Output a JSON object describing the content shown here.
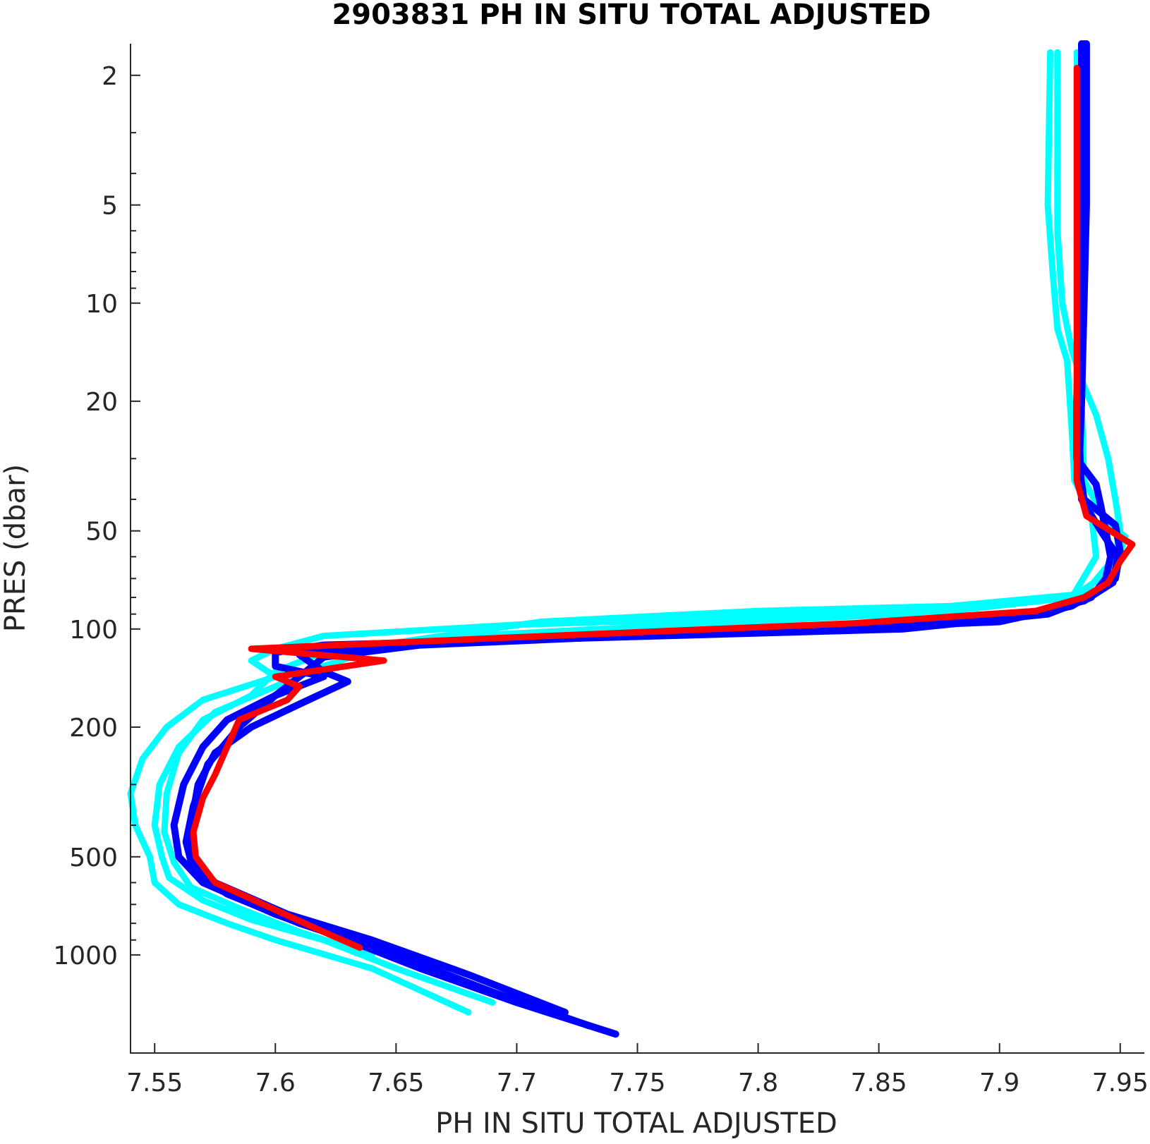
{
  "chart_data": {
    "type": "line",
    "title": "2903831  PH IN SITU TOTAL ADJUSTED",
    "xlabel": "PH IN SITU TOTAL ADJUSTED",
    "ylabel": "PRES (dbar)",
    "xlim": [
      7.54,
      7.96
    ],
    "ylim": [
      1.6,
      2000
    ],
    "y_scale": "log",
    "y_reversed": true,
    "grid": false,
    "x_ticks": [
      "7.55",
      "7.6",
      "7.65",
      "7.7",
      "7.75",
      "7.8",
      "7.85",
      "7.9",
      "7.95"
    ],
    "y_ticks": [
      "2",
      "5",
      "10",
      "20",
      "50",
      "100",
      "200",
      "500",
      "1000"
    ],
    "colors": {
      "cyan": "#00ffff",
      "blue": "#0000ff",
      "red": "#ff0000"
    },
    "series": [
      {
        "color": "cyan",
        "points": [
          [
            7.921,
            1.7
          ],
          [
            7.92,
            5
          ],
          [
            7.922,
            8
          ],
          [
            7.924,
            12
          ],
          [
            7.928,
            15
          ],
          [
            7.93,
            25
          ],
          [
            7.931,
            35
          ],
          [
            7.938,
            44
          ],
          [
            7.94,
            60
          ],
          [
            7.93,
            80
          ],
          [
            7.88,
            88
          ],
          [
            7.8,
            92
          ],
          [
            7.7,
            97
          ],
          [
            7.62,
            105
          ],
          [
            7.6,
            115
          ],
          [
            7.59,
            125
          ],
          [
            7.6,
            140
          ],
          [
            7.57,
            165
          ],
          [
            7.555,
            200
          ],
          [
            7.545,
            250
          ],
          [
            7.54,
            320
          ],
          [
            7.542,
            400
          ],
          [
            7.548,
            500
          ],
          [
            7.55,
            600
          ],
          [
            7.56,
            700
          ],
          [
            7.58,
            800
          ],
          [
            7.6,
            900
          ],
          [
            7.64,
            1100
          ],
          [
            7.68,
            1500
          ]
        ]
      },
      {
        "color": "cyan",
        "points": [
          [
            7.924,
            1.7
          ],
          [
            7.924,
            6
          ],
          [
            7.926,
            10
          ],
          [
            7.93,
            14
          ],
          [
            7.935,
            18
          ],
          [
            7.94,
            22
          ],
          [
            7.945,
            30
          ],
          [
            7.948,
            40
          ],
          [
            7.95,
            50
          ],
          [
            7.948,
            60
          ],
          [
            7.935,
            78
          ],
          [
            7.88,
            85
          ],
          [
            7.8,
            88
          ],
          [
            7.71,
            95
          ],
          [
            7.65,
            110
          ],
          [
            7.62,
            130
          ],
          [
            7.6,
            150
          ],
          [
            7.575,
            180
          ],
          [
            7.56,
            230
          ],
          [
            7.552,
            300
          ],
          [
            7.55,
            400
          ],
          [
            7.553,
            500
          ],
          [
            7.556,
            580
          ],
          [
            7.57,
            680
          ],
          [
            7.59,
            780
          ],
          [
            7.62,
            900
          ],
          [
            7.65,
            1100
          ],
          [
            7.69,
            1400
          ]
        ]
      },
      {
        "color": "cyan",
        "points": [
          [
            7.932,
            1.7
          ],
          [
            7.933,
            5
          ],
          [
            7.934,
            10
          ],
          [
            7.934,
            20
          ],
          [
            7.935,
            35
          ],
          [
            7.945,
            48
          ],
          [
            7.952,
            52
          ],
          [
            7.948,
            65
          ],
          [
            7.93,
            80
          ],
          [
            7.86,
            90
          ],
          [
            7.78,
            96
          ],
          [
            7.68,
            105
          ],
          [
            7.62,
            118
          ],
          [
            7.6,
            135
          ],
          [
            7.59,
            160
          ],
          [
            7.57,
            190
          ],
          [
            7.56,
            240
          ],
          [
            7.555,
            320
          ],
          [
            7.554,
            420
          ],
          [
            7.558,
            520
          ],
          [
            7.565,
            620
          ],
          [
            7.585,
            720
          ],
          [
            7.61,
            850
          ],
          [
            7.64,
            1000
          ]
        ]
      },
      {
        "color": "blue",
        "points": [
          [
            7.935,
            1.6
          ],
          [
            7.934,
            5
          ],
          [
            7.933,
            10
          ],
          [
            7.932,
            20
          ],
          [
            7.932,
            30
          ],
          [
            7.94,
            36
          ],
          [
            7.942,
            42
          ],
          [
            7.944,
            50
          ],
          [
            7.946,
            60
          ],
          [
            7.944,
            70
          ],
          [
            7.938,
            80
          ],
          [
            7.92,
            90
          ],
          [
            7.86,
            100
          ],
          [
            7.7,
            108
          ],
          [
            7.62,
            112
          ],
          [
            7.6,
            118
          ],
          [
            7.6,
            130
          ],
          [
            7.62,
            140
          ],
          [
            7.6,
            160
          ],
          [
            7.58,
            190
          ],
          [
            7.57,
            230
          ],
          [
            7.562,
            300
          ],
          [
            7.558,
            400
          ],
          [
            7.56,
            500
          ],
          [
            7.57,
            600
          ],
          [
            7.6,
            750
          ],
          [
            7.63,
            900
          ],
          [
            7.66,
            1100
          ],
          [
            7.7,
            1400
          ],
          [
            7.741,
            1750
          ]
        ]
      },
      {
        "color": "blue",
        "points": [
          [
            7.936,
            1.6
          ],
          [
            7.936,
            5
          ],
          [
            7.935,
            10
          ],
          [
            7.934,
            20
          ],
          [
            7.933,
            32
          ],
          [
            7.935,
            40
          ],
          [
            7.948,
            48
          ],
          [
            7.95,
            58
          ],
          [
            7.948,
            70
          ],
          [
            7.93,
            85
          ],
          [
            7.9,
            95
          ],
          [
            7.8,
            102
          ],
          [
            7.7,
            108
          ],
          [
            7.64,
            113
          ],
          [
            7.61,
            120
          ],
          [
            7.62,
            135
          ],
          [
            7.63,
            145
          ],
          [
            7.61,
            170
          ],
          [
            7.59,
            200
          ],
          [
            7.575,
            240
          ],
          [
            7.568,
            300
          ],
          [
            7.565,
            400
          ],
          [
            7.565,
            500
          ],
          [
            7.575,
            600
          ],
          [
            7.605,
            750
          ],
          [
            7.64,
            900
          ],
          [
            7.68,
            1150
          ],
          [
            7.72,
            1500
          ]
        ]
      },
      {
        "color": "blue",
        "points": [
          [
            7.934,
            1.6
          ],
          [
            7.934,
            10
          ],
          [
            7.933,
            25
          ],
          [
            7.934,
            40
          ],
          [
            7.942,
            50
          ],
          [
            7.949,
            60
          ],
          [
            7.947,
            72
          ],
          [
            7.935,
            82
          ],
          [
            7.91,
            90
          ],
          [
            7.87,
            97
          ],
          [
            7.76,
            104
          ],
          [
            7.66,
            112
          ],
          [
            7.62,
            122
          ],
          [
            7.61,
            140
          ],
          [
            7.6,
            160
          ],
          [
            7.585,
            200
          ],
          [
            7.572,
            260
          ],
          [
            7.566,
            350
          ],
          [
            7.563,
            450
          ],
          [
            7.566,
            550
          ],
          [
            7.58,
            650
          ],
          [
            7.61,
            800
          ],
          [
            7.65,
            1000
          ],
          [
            7.69,
            1300
          ],
          [
            7.73,
            1650
          ]
        ]
      },
      {
        "color": "red",
        "points": [
          [
            7.932,
            1.9
          ],
          [
            7.932,
            5
          ],
          [
            7.932,
            10
          ],
          [
            7.932,
            20
          ],
          [
            7.932,
            35
          ],
          [
            7.936,
            45
          ],
          [
            7.955,
            55
          ],
          [
            7.95,
            62
          ],
          [
            7.945,
            72
          ],
          [
            7.935,
            80
          ],
          [
            7.915,
            88
          ],
          [
            7.84,
            96
          ],
          [
            7.7,
            106
          ],
          [
            7.59,
            115
          ],
          [
            7.645,
            125
          ],
          [
            7.6,
            140
          ],
          [
            7.61,
            150
          ],
          [
            7.605,
            165
          ],
          [
            7.585,
            190
          ],
          [
            7.58,
            230
          ],
          [
            7.575,
            280
          ],
          [
            7.57,
            330
          ],
          [
            7.566,
            420
          ],
          [
            7.567,
            500
          ],
          [
            7.575,
            600
          ],
          [
            7.595,
            700
          ],
          [
            7.62,
            850
          ],
          [
            7.635,
            950
          ]
        ]
      }
    ]
  }
}
